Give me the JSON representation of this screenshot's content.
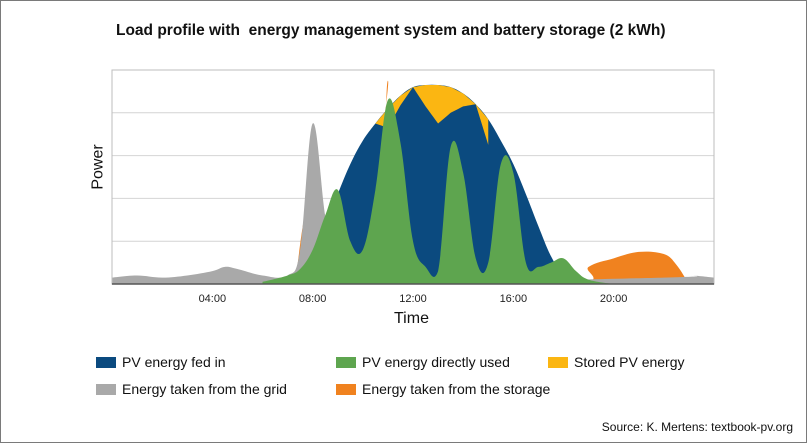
{
  "title": "Load profile with  energy management system and battery storage (2 kWh)",
  "source": "Source: K. Mertens: textbook-pv.org",
  "colors": {
    "pv_fed_in": "#0b4a7f",
    "pv_direct": "#5ea54f",
    "stored": "#fbb612",
    "grid": "#a9a9a9",
    "from_storage": "#f0821f",
    "gridline": "#d4d4d4"
  },
  "chart_data": {
    "type": "area",
    "title": "Load profile with  energy management system and battery storage (2 kWh)",
    "xlabel": "Time",
    "ylabel": "Power",
    "x_ticks": [
      "04:00",
      "08:00",
      "12:00",
      "16:00",
      "20:00"
    ],
    "x_tick_values": [
      4,
      8,
      12,
      16,
      20
    ],
    "xlim": [
      0,
      24
    ],
    "ylim": [
      0,
      5
    ],
    "grid": true,
    "legend_position": "bottom",
    "series": [
      {
        "name": "PV energy fed in",
        "x": [
          7.0,
          7.5,
          8.0,
          8.5,
          9.0,
          9.5,
          10.0,
          10.5,
          11.0,
          11.5,
          12.0,
          12.5,
          13.0,
          13.5,
          14.0,
          14.5,
          15.0,
          15.5,
          16.0,
          16.5,
          17.0,
          17.5,
          18.0,
          18.5,
          19.0
        ],
        "y": [
          0.05,
          0.2,
          0.65,
          1.35,
          2.1,
          2.8,
          3.35,
          3.75,
          4.1,
          4.4,
          4.6,
          4.65,
          4.65,
          4.6,
          4.45,
          4.2,
          3.85,
          3.35,
          2.8,
          2.1,
          1.35,
          0.65,
          0.2,
          0.05,
          0.0
        ]
      },
      {
        "name": "PV energy directly used",
        "x": [
          6.0,
          7.0,
          7.5,
          8.0,
          8.5,
          9.0,
          9.5,
          10.0,
          10.5,
          11.0,
          11.5,
          12.0,
          12.5,
          13.0,
          13.5,
          14.0,
          14.5,
          15.0,
          15.5,
          16.0,
          16.5,
          17.0,
          17.5,
          18.0,
          18.5,
          19.0,
          20.0
        ],
        "y": [
          0.05,
          0.2,
          0.35,
          0.8,
          1.6,
          2.2,
          1.0,
          0.8,
          2.2,
          4.3,
          3.3,
          1.0,
          0.4,
          0.3,
          3.2,
          2.6,
          0.6,
          0.5,
          2.8,
          2.6,
          0.5,
          0.4,
          0.5,
          0.6,
          0.3,
          0.1,
          0.0
        ]
      },
      {
        "name": "Stored PV energy",
        "x": [
          10.5,
          11.0,
          12.0,
          12.5,
          13.0,
          14.5,
          15.0
        ],
        "y": [
          0.0,
          0.45,
          0.0,
          0.5,
          0.9,
          0.0,
          0.6
        ]
      },
      {
        "name": "Energy taken from the grid",
        "x": [
          0.0,
          1.0,
          2.0,
          3.0,
          4.0,
          4.5,
          5.0,
          6.0,
          7.0,
          7.5,
          8.0,
          8.5,
          9.0,
          22.0,
          23.0,
          24.0
        ],
        "y": [
          0.15,
          0.2,
          0.15,
          0.2,
          0.3,
          0.4,
          0.35,
          0.2,
          0.2,
          0.8,
          3.75,
          1.6,
          0.0,
          0.15,
          0.2,
          0.15
        ]
      },
      {
        "name": "Energy taken from the storage",
        "x": [
          7.3,
          7.8,
          8.3,
          10.5,
          11.0,
          11.3,
          18.5,
          19.0,
          20.0,
          21.0,
          22.0,
          22.5,
          23.0
        ],
        "y": [
          0.0,
          1.75,
          0.0,
          0.0,
          4.75,
          0.0,
          0.0,
          0.4,
          0.6,
          0.75,
          0.7,
          0.45,
          0.0
        ]
      }
    ]
  },
  "legend": [
    {
      "label": "PV energy fed in",
      "color": "#0b4a7f"
    },
    {
      "label": "PV energy directly used",
      "color": "#5ea54f"
    },
    {
      "label": "Stored PV energy",
      "color": "#fbb612"
    },
    {
      "label": "Energy taken from the grid",
      "color": "#a9a9a9"
    },
    {
      "label": "Energy taken from the storage",
      "color": "#f0821f"
    }
  ]
}
